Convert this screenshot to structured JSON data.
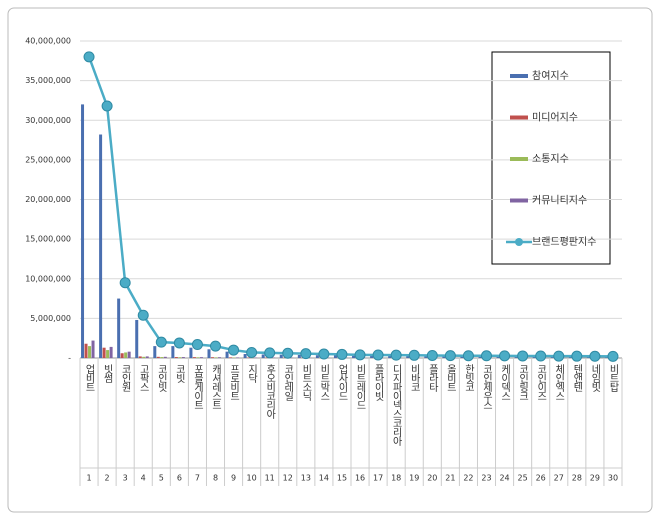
{
  "chart_data": {
    "type": "bar-line",
    "categories": [
      "업비트",
      "빗썸",
      "코인원",
      "고팍스",
      "코인빗",
      "코빗",
      "포블게이트",
      "캐셔레스트",
      "프로비트",
      "지닥",
      "후오비코리아",
      "코인레일",
      "비트소닉",
      "비트박스",
      "업사이드",
      "비트레이드",
      "플라이빗",
      "디지파이넥스코리아",
      "비바코",
      "플라타",
      "올비트",
      "한빗코",
      "코인제우스",
      "케이덱스",
      "코인링크",
      "코인이즈",
      "체인엑스",
      "텐앤텐",
      "네임빗",
      "비트탑"
    ],
    "ranks": [
      1,
      2,
      3,
      4,
      5,
      6,
      7,
      8,
      9,
      10,
      11,
      12,
      13,
      14,
      15,
      16,
      17,
      18,
      19,
      20,
      21,
      22,
      23,
      24,
      25,
      26,
      27,
      28,
      29,
      30
    ],
    "series": [
      {
        "name": "참여지수",
        "color": "#4a6fb0",
        "kind": "bar",
        "values": [
          32000000,
          28200000,
          7500000,
          4800000,
          1500000,
          1500000,
          1300000,
          1100000,
          800000,
          500000,
          450000,
          400000,
          380000,
          350000,
          320000,
          280000,
          260000,
          250000,
          240000,
          230000,
          210000,
          200000,
          190000,
          180000,
          170000,
          160000,
          150000,
          140000,
          130000,
          120000
        ]
      },
      {
        "name": "미디어지수",
        "color": "#c0504d",
        "kind": "bar",
        "values": [
          1800000,
          1300000,
          600000,
          200000,
          150000,
          120000,
          110000,
          100000,
          80000,
          60000,
          60000,
          50000,
          50000,
          40000,
          40000,
          40000,
          30000,
          30000,
          30000,
          30000,
          30000,
          30000,
          30000,
          30000,
          30000,
          30000,
          30000,
          30000,
          30000,
          30000
        ]
      },
      {
        "name": "소통지수",
        "color": "#9bbb59",
        "kind": "bar",
        "values": [
          1500000,
          1000000,
          700000,
          150000,
          120000,
          100000,
          90000,
          80000,
          60000,
          50000,
          50000,
          40000,
          40000,
          40000,
          30000,
          30000,
          30000,
          30000,
          30000,
          30000,
          30000,
          30000,
          30000,
          30000,
          30000,
          30000,
          30000,
          30000,
          30000,
          30000
        ]
      },
      {
        "name": "커뮤니티지수",
        "color": "#8064a2",
        "kind": "bar",
        "values": [
          2200000,
          1400000,
          800000,
          200000,
          150000,
          120000,
          110000,
          100000,
          70000,
          60000,
          60000,
          50000,
          50000,
          40000,
          40000,
          40000,
          30000,
          30000,
          30000,
          30000,
          30000,
          30000,
          30000,
          30000,
          30000,
          30000,
          30000,
          30000,
          30000,
          30000
        ]
      },
      {
        "name": "브랜드평판지수",
        "color": "#4bacc6",
        "kind": "line",
        "values": [
          38000000,
          31800000,
          9500000,
          5400000,
          2000000,
          1900000,
          1700000,
          1500000,
          1000000,
          700000,
          650000,
          600000,
          550000,
          500000,
          450000,
          400000,
          380000,
          360000,
          340000,
          320000,
          300000,
          290000,
          280000,
          270000,
          260000,
          250000,
          240000,
          230000,
          220000,
          210000
        ]
      }
    ],
    "ylim": [
      0,
      40000000
    ],
    "yticks": [
      {
        "value": 0,
        "label": "-"
      },
      {
        "value": 5000000,
        "label": "5,000,000"
      },
      {
        "value": 10000000,
        "label": "10,000,000"
      },
      {
        "value": 15000000,
        "label": "15,000,000"
      },
      {
        "value": 20000000,
        "label": "20,000,000"
      },
      {
        "value": 25000000,
        "label": "25,000,000"
      },
      {
        "value": 30000000,
        "label": "30,000,000"
      },
      {
        "value": 35000000,
        "label": "35,000,000"
      },
      {
        "value": 40000000,
        "label": "40,000,000"
      }
    ],
    "grid": true
  }
}
